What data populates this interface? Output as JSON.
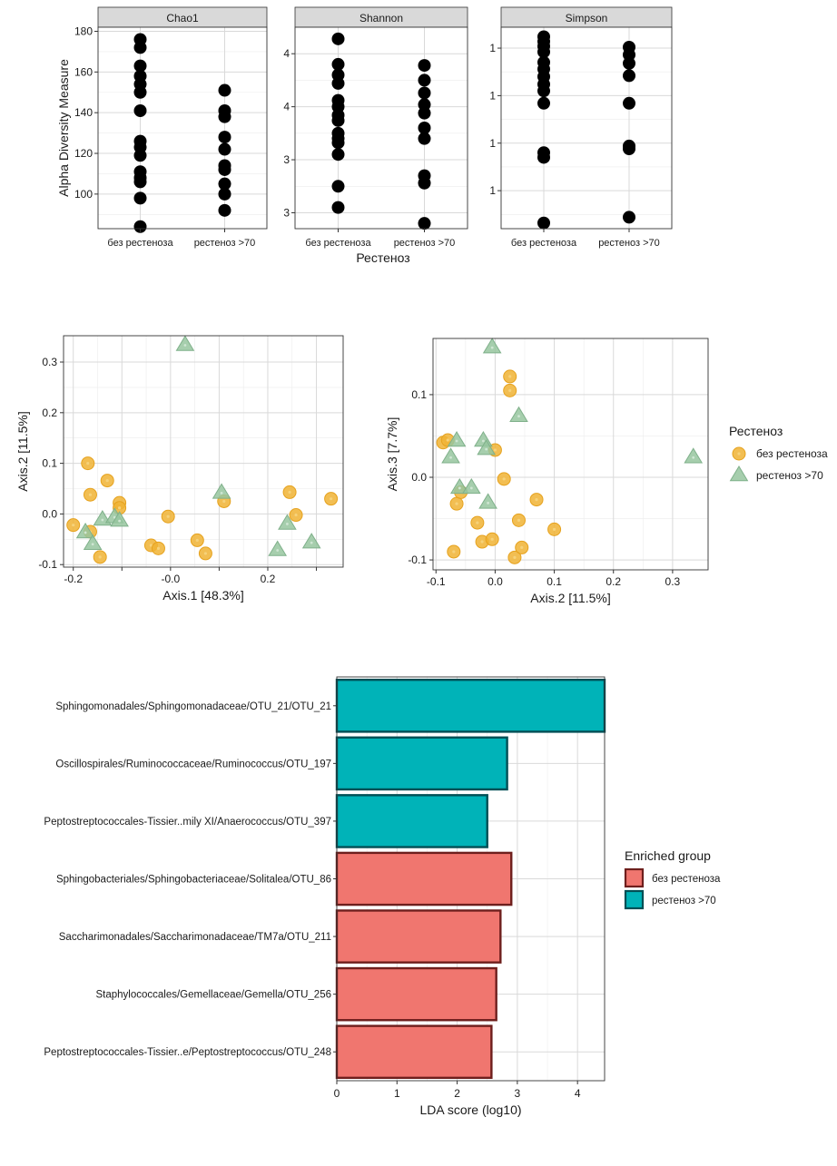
{
  "colors": {
    "point_black": "#000000",
    "group_no": "#f0b334",
    "group_yes": "#96c59f",
    "lda_no": "#f0766f",
    "lda_yes": "#00b3b8",
    "strip": "#d9d9d9",
    "grid": "#d9d9d9"
  },
  "chart_data": [
    {
      "type": "scatter",
      "panel": "alpha-diversity",
      "ylabel": "Alpha Diversity Measure",
      "xlabel": "Рестеноз",
      "categories": [
        "без рестеноза",
        "рестеноз >70"
      ],
      "facets": [
        {
          "name": "Chao1",
          "ylim": [
            83,
            182
          ],
          "yticks": [
            100,
            120,
            140,
            160,
            180
          ],
          "series": [
            {
              "values": [
                176,
                172,
                163,
                158,
                154,
                150,
                141,
                126,
                123,
                119,
                111,
                108,
                106,
                98,
                84
              ]
            },
            {
              "values": [
                151,
                141,
                138,
                128,
                122,
                114,
                112,
                105,
                100,
                92
              ]
            }
          ]
        },
        {
          "name": "Shannon",
          "ylim": [
            2.35,
            4.25
          ],
          "yticks": [
            2.5,
            3.0,
            3.5,
            4.0
          ],
          "series": [
            {
              "values": [
                4.14,
                3.9,
                3.8,
                3.72,
                3.56,
                3.5,
                3.42,
                3.37,
                3.25,
                3.2,
                3.16,
                3.05,
                2.75,
                2.55
              ]
            },
            {
              "values": [
                3.89,
                3.75,
                3.63,
                3.52,
                3.44,
                3.3,
                3.2,
                2.85,
                2.78,
                2.4
              ]
            }
          ]
        },
        {
          "name": "Simpson",
          "ylim": [
            0.76,
            0.972
          ],
          "yticks": [
            0.8,
            0.85,
            0.9,
            0.95
          ],
          "series": [
            {
              "values": [
                0.962,
                0.957,
                0.952,
                0.946,
                0.935,
                0.928,
                0.92,
                0.912,
                0.905,
                0.892,
                0.84,
                0.835,
                0.766
              ]
            },
            {
              "values": [
                0.951,
                0.943,
                0.934,
                0.921,
                0.892,
                0.847,
                0.844,
                0.772
              ]
            }
          ]
        }
      ]
    },
    {
      "type": "scatter",
      "panel": "ordination-1",
      "xlabel": "Axis.1   [48.3%]",
      "ylabel": "Axis.2   [11.5%]",
      "xlim": [
        -0.22,
        0.355
      ],
      "ylim": [
        -0.105,
        0.352
      ],
      "xticks": [
        -0.2,
        -0.1,
        0.0,
        0.1,
        0.2,
        0.3
      ],
      "xtick_labels": [
        "-0.2",
        "",
        "-0.0",
        "",
        "0.2",
        ""
      ],
      "yticks": [
        -0.1,
        0.0,
        0.1,
        0.2,
        0.3
      ],
      "ytick_labels": [
        "-0.1",
        "0.0",
        "0.1",
        "0.2",
        "0.3"
      ],
      "series": [
        {
          "name": "без рестеноза",
          "points": [
            [
              -0.2,
              -0.022
            ],
            [
              -0.17,
              0.1
            ],
            [
              -0.165,
              0.038
            ],
            [
              -0.165,
              -0.035
            ],
            [
              -0.145,
              -0.085
            ],
            [
              -0.13,
              0.066
            ],
            [
              -0.105,
              0.022
            ],
            [
              -0.105,
              0.012
            ],
            [
              -0.04,
              -0.062
            ],
            [
              -0.025,
              -0.068
            ],
            [
              -0.005,
              -0.005
            ],
            [
              0.055,
              -0.052
            ],
            [
              0.072,
              -0.078
            ],
            [
              0.11,
              0.025
            ],
            [
              0.245,
              0.043
            ],
            [
              0.258,
              -0.002
            ],
            [
              0.33,
              0.03
            ]
          ]
        },
        {
          "name": "рестеноз >70",
          "points": [
            [
              0.03,
              0.335
            ],
            [
              -0.175,
              -0.035
            ],
            [
              -0.16,
              -0.058
            ],
            [
              -0.14,
              -0.01
            ],
            [
              -0.115,
              -0.005
            ],
            [
              -0.105,
              -0.012
            ],
            [
              0.105,
              0.043
            ],
            [
              0.22,
              -0.07
            ],
            [
              0.24,
              -0.018
            ],
            [
              0.29,
              -0.055
            ]
          ]
        }
      ]
    },
    {
      "type": "scatter",
      "panel": "ordination-2",
      "xlabel": "Axis.2   [11.5%]",
      "ylabel": "Axis.3   [7.7%]",
      "xlim": [
        -0.105,
        0.36
      ],
      "ylim": [
        -0.112,
        0.168
      ],
      "xticks": [
        -0.1,
        0.0,
        0.1,
        0.2,
        0.3
      ],
      "xtick_labels": [
        "-0.1",
        "0.0",
        "0.1",
        "0.2",
        "0.3"
      ],
      "yticks": [
        -0.1,
        0.0,
        0.1
      ],
      "ytick_labels": [
        "-0.1",
        "0.0",
        "0.1"
      ],
      "series": [
        {
          "name": "без рестеноза",
          "points": [
            [
              -0.088,
              0.042
            ],
            [
              -0.08,
              0.045
            ],
            [
              -0.07,
              -0.09
            ],
            [
              -0.065,
              -0.032
            ],
            [
              -0.058,
              -0.018
            ],
            [
              -0.03,
              -0.055
            ],
            [
              -0.022,
              -0.078
            ],
            [
              -0.005,
              -0.075
            ],
            [
              0.0,
              0.033
            ],
            [
              0.015,
              -0.002
            ],
            [
              0.025,
              0.122
            ],
            [
              0.025,
              0.105
            ],
            [
              0.033,
              -0.097
            ],
            [
              0.04,
              -0.052
            ],
            [
              0.045,
              -0.085
            ],
            [
              0.07,
              -0.027
            ],
            [
              0.1,
              -0.063
            ]
          ]
        },
        {
          "name": "рестеноз >70",
          "points": [
            [
              -0.005,
              0.158
            ],
            [
              -0.075,
              0.025
            ],
            [
              -0.065,
              0.045
            ],
            [
              -0.06,
              -0.012
            ],
            [
              -0.04,
              -0.012
            ],
            [
              -0.02,
              0.045
            ],
            [
              -0.015,
              0.035
            ],
            [
              -0.012,
              -0.03
            ],
            [
              0.04,
              0.075
            ],
            [
              0.335,
              0.025
            ]
          ]
        }
      ]
    },
    {
      "type": "bar",
      "panel": "lda",
      "orientation": "horizontal",
      "xlabel": "LDA score (log10)",
      "xlim": [
        0,
        4.45
      ],
      "xticks": [
        0,
        1,
        2,
        3,
        4
      ],
      "categories": [
        "Sphingomonadales/Sphingomonadaceae/OTU_21/OTU_21",
        "Oscillospirales/Ruminococcaceae/Ruminococcus/OTU_197",
        "Peptostreptococcales-Tissier..mily XI/Anaerococcus/OTU_397",
        "Sphingobacteriales/Sphingobacteriaceae/Solitalea/OTU_86",
        "Saccharimonadales/Saccharimonadaceae/TM7a/OTU_211",
        "Staphylococcales/Gemellaceae/Gemella/OTU_256",
        "Peptostreptococcales-Tissier..e/Peptostreptococcus/OTU_248"
      ],
      "values": [
        4.45,
        2.83,
        2.5,
        2.9,
        2.72,
        2.65,
        2.57
      ],
      "groups": [
        "рестеноз >70",
        "рестеноз >70",
        "рестеноз >70",
        "без рестеноза",
        "без рестеноза",
        "без рестеноза",
        "без рестеноза"
      ]
    }
  ],
  "legends": {
    "group_title": "Рестеноз",
    "group_items": [
      "без рестеноза",
      "рестеноз >70"
    ],
    "lda_title": "Enriched group",
    "lda_items": [
      "без рестеноза",
      "рестеноз >70"
    ]
  }
}
